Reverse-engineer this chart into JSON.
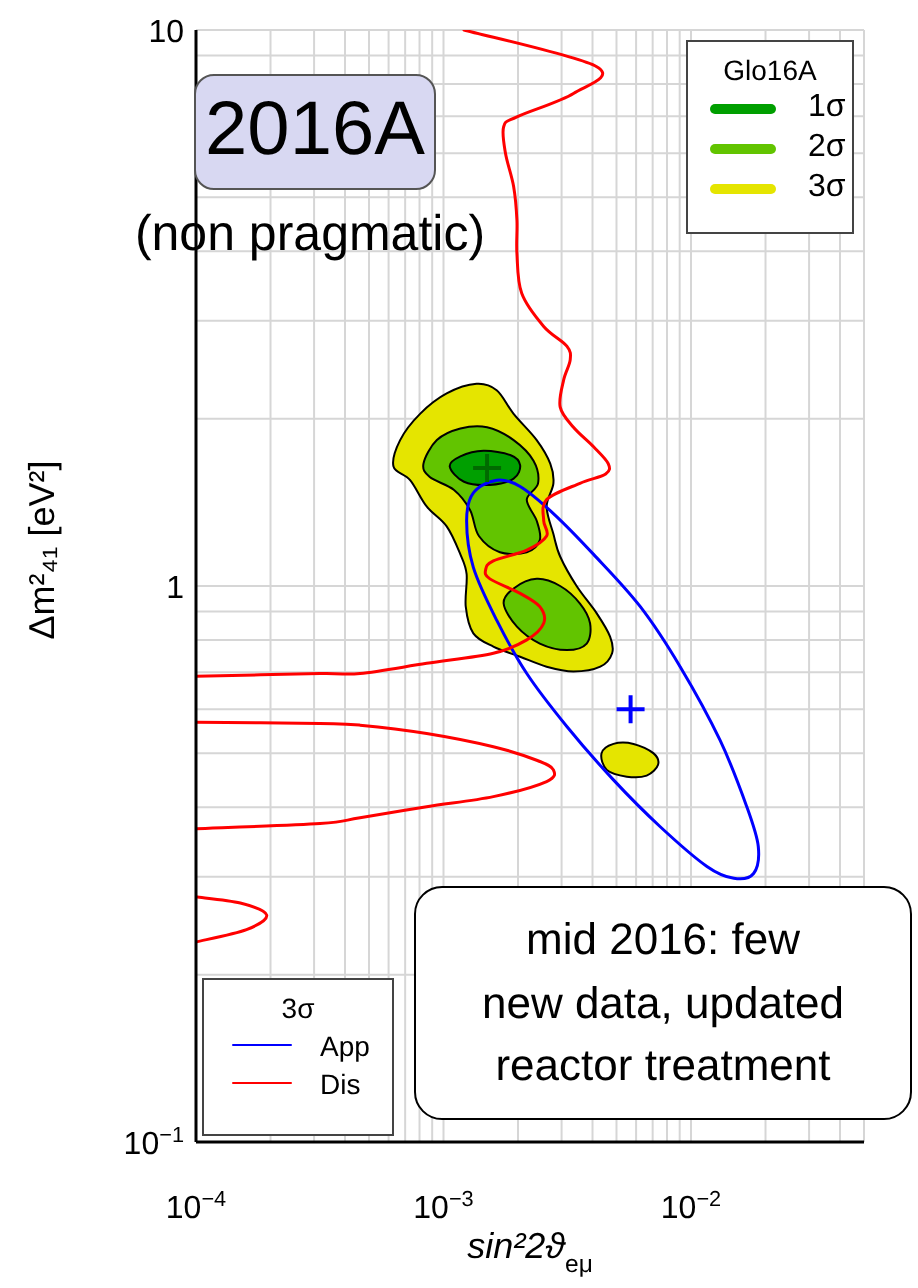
{
  "chart_data": {
    "type": "line",
    "xlabel": "sin²2ϑ$_{eμ}$",
    "ylabel": "Δm²₄₁ [eV²]",
    "legend_title": "Glo16A",
    "legend": [
      "top right",
      "bottom left"
    ],
    "log": "xy",
    "grid": true,
    "xlim": [
      0.0001,
      0.05
    ],
    "ylim": [
      0.1,
      10
    ],
    "xticks": [
      {
        "value": 0.0001,
        "label": "10$^{−4}$"
      },
      {
        "value": 0.0002,
        "label": null
      },
      {
        "value": 0.0003,
        "label": null
      },
      {
        "value": 0.0004,
        "label": null
      },
      {
        "value": 0.0005,
        "label": null
      },
      {
        "value": 0.0006,
        "label": null
      },
      {
        "value": 0.0007,
        "label": null
      },
      {
        "value": 0.0008,
        "label": null
      },
      {
        "value": 0.0009,
        "label": null
      },
      {
        "value": 0.001,
        "label": "10$^{−3}$"
      },
      {
        "value": 0.002,
        "label": null
      },
      {
        "value": 0.003,
        "label": null
      },
      {
        "value": 0.004,
        "label": null
      },
      {
        "value": 0.005,
        "label": null
      },
      {
        "value": 0.006,
        "label": null
      },
      {
        "value": 0.007,
        "label": null
      },
      {
        "value": 0.008,
        "label": null
      },
      {
        "value": 0.009,
        "label": null
      },
      {
        "value": 0.01,
        "label": "10$^{−2}$"
      },
      {
        "value": 0.02,
        "label": null
      },
      {
        "value": 0.03,
        "label": null
      },
      {
        "value": 0.04,
        "label": null
      }
    ],
    "yticks": [
      {
        "value": 0.1,
        "label": "10$^{−1}$"
      },
      {
        "value": 0.2,
        "label": null
      },
      {
        "value": 0.3,
        "label": null
      },
      {
        "value": 0.4,
        "label": null
      },
      {
        "value": 0.5,
        "label": null
      },
      {
        "value": 0.6,
        "label": null
      },
      {
        "value": 0.7,
        "label": null
      },
      {
        "value": 0.8,
        "label": null
      },
      {
        "value": 0.9,
        "label": null
      },
      1,
      {
        "value": 2,
        "label": null
      },
      {
        "value": 3,
        "label": null
      },
      {
        "value": 4,
        "label": null
      },
      {
        "value": 5,
        "label": null
      },
      {
        "value": 6,
        "label": null
      },
      {
        "value": 7,
        "label": null
      },
      {
        "value": 8,
        "label": null
      },
      {
        "value": 9,
        "label": null
      },
      10
    ],
    "annotations": [
      "2016A",
      "(non pragmatic)",
      "mid 2016: few\nnew data, updated\nreactor treatment",
      "3σ"
    ],
    "series": [
      {
        "name": "1σ",
        "type": "area",
        "color": "#009f00",
        "x": [
          0.00106,
          0.00117,
          0.00145,
          0.00186,
          0.00204,
          0.00192,
          0.00154,
          0.00121
        ],
        "values": [
          1.64,
          1.71,
          1.75,
          1.72,
          1.65,
          1.56,
          1.52,
          1.54
        ]
      },
      {
        "name": "2σ",
        "type": "area",
        "color": "#62c400",
        "x": [
          0.00083,
          0.00094,
          0.00117,
          0.0015,
          0.00192,
          0.00231,
          0.00241,
          0.00217,
          0.00238,
          0.00245,
          0.00217,
          0.00169,
          0.00139,
          0.00128,
          0.0011,
          0.00088,
          null,
          0.00175,
          0.00192,
          0.00238,
          0.00296,
          0.00356,
          0.00391,
          0.00379,
          0.00315,
          0.00245,
          0.00198
        ],
        "values": [
          1.66,
          1.83,
          1.92,
          1.93,
          1.83,
          1.68,
          1.53,
          1.43,
          1.31,
          1.21,
          1.15,
          1.15,
          1.23,
          1.37,
          1.49,
          1.57,
          null,
          0.93,
          0.99,
          1.03,
          1.0,
          0.93,
          0.857,
          0.788,
          0.767,
          0.788,
          0.845
        ]
      },
      {
        "name": "3σ",
        "type": "area",
        "color": "#e5e500",
        "x": [
          0.00136,
          0.00164,
          0.00192,
          0.00238,
          0.0027,
          0.00278,
          0.00261,
          0.00278,
          0.00296,
          0.00345,
          0.00416,
          0.00471,
          0.0048,
          0.0043,
          0.00335,
          0.00261,
          0.00204,
          0.00159,
          0.00132,
          0.00123,
          0.00124,
          0.00117,
          0.00103,
          0.000855,
          0.000733,
          0.000628,
          0.000668,
          0.000804,
          0.00103,
          null,
          0.00435,
          0.00486,
          0.00586,
          0.00706,
          0.00736,
          0.00662,
          0.0055,
          0.00457
        ],
        "values": [
          2.31,
          2.25,
          2.04,
          1.83,
          1.66,
          1.53,
          1.39,
          1.24,
          1.13,
          1.0,
          0.893,
          0.811,
          0.757,
          0.716,
          0.702,
          0.716,
          0.746,
          0.778,
          0.822,
          0.918,
          1.05,
          1.14,
          1.28,
          1.39,
          1.55,
          1.64,
          1.83,
          2.04,
          2.22,
          null,
          0.5,
          0.52,
          0.52,
          0.5,
          0.477,
          0.456,
          0.454,
          0.467
        ]
      },
      {
        "name": "App",
        "color": "#0000ff",
        "x": [
          0.00164,
          0.00204,
          0.00278,
          0.00404,
          0.00624,
          0.00904,
          0.0131,
          0.0168,
          0.0187,
          0.0179,
          0.0149,
          0.0116,
          0.00751,
          0.00486,
          0.00315,
          0.00217,
          0.00164,
          0.00132,
          0.00124,
          0.00132,
          0.00164
        ],
        "values": [
          1.55,
          1.51,
          1.35,
          1.14,
          0.918,
          0.716,
          0.528,
          0.401,
          0.34,
          0.304,
          0.298,
          0.313,
          0.369,
          0.448,
          0.559,
          0.696,
          0.868,
          1.08,
          1.31,
          1.47,
          1.55
        ]
      },
      {
        "name": "Dis",
        "color": "#ff0000",
        "x": [
          0.00121,
          0.00416,
          0.00335,
          0.00198,
          0.00175,
          0.00178,
          0.00192,
          0.00198,
          0.00198,
          0.00207,
          0.00254,
          0.00315,
          0.00325,
          0.00306,
          0.00296,
          0.00335,
          0.00404,
          0.00463,
          0.00452,
          0.00356,
          0.00261,
          0.00254,
          0.00261,
          0.00217,
          0.00159,
          0.00148,
          0.00154,
          0.00204,
          0.00245,
          0.00254,
          0.00217,
          0.00159,
          0.000855,
          0.00046,
          0.000317,
          0.0001,
          null,
          0.0001,
          0.000317,
          0.00046,
          0.000855,
          0.00159,
          0.00238,
          0.00278,
          0.00261,
          0.00159,
          0.000855,
          0.00046,
          0.000317,
          0.0001,
          null,
          0.0001,
          0.000151,
          0.000193,
          0.00016,
          0.0001
        ],
        "values": [
          10,
          8.59,
          7.69,
          6.98,
          6.7,
          6.0,
          5.23,
          4.55,
          3.96,
          3.36,
          2.93,
          2.7,
          2.55,
          2.35,
          2.1,
          1.93,
          1.78,
          1.66,
          1.59,
          1.53,
          1.43,
          1.31,
          1.23,
          1.16,
          1.11,
          1.07,
          1.03,
          0.97,
          0.918,
          0.857,
          0.8,
          0.757,
          0.726,
          0.696,
          0.696,
          0.688,
          null,
          0.569,
          0.566,
          0.562,
          0.543,
          0.514,
          0.486,
          0.467,
          0.445,
          0.418,
          0.401,
          0.383,
          0.374,
          0.366,
          null,
          0.276,
          0.269,
          0.256,
          0.241,
          0.229
        ]
      },
      {
        "type": "scatter",
        "color": "#006a00",
        "marker": "cross",
        "x": [
          0.0015
        ],
        "values": [
          1.63
        ]
      },
      {
        "type": "scatter",
        "color": "#0000ff",
        "marker": "cross",
        "x": [
          0.0057
        ],
        "values": [
          0.6
        ]
      }
    ]
  }
}
